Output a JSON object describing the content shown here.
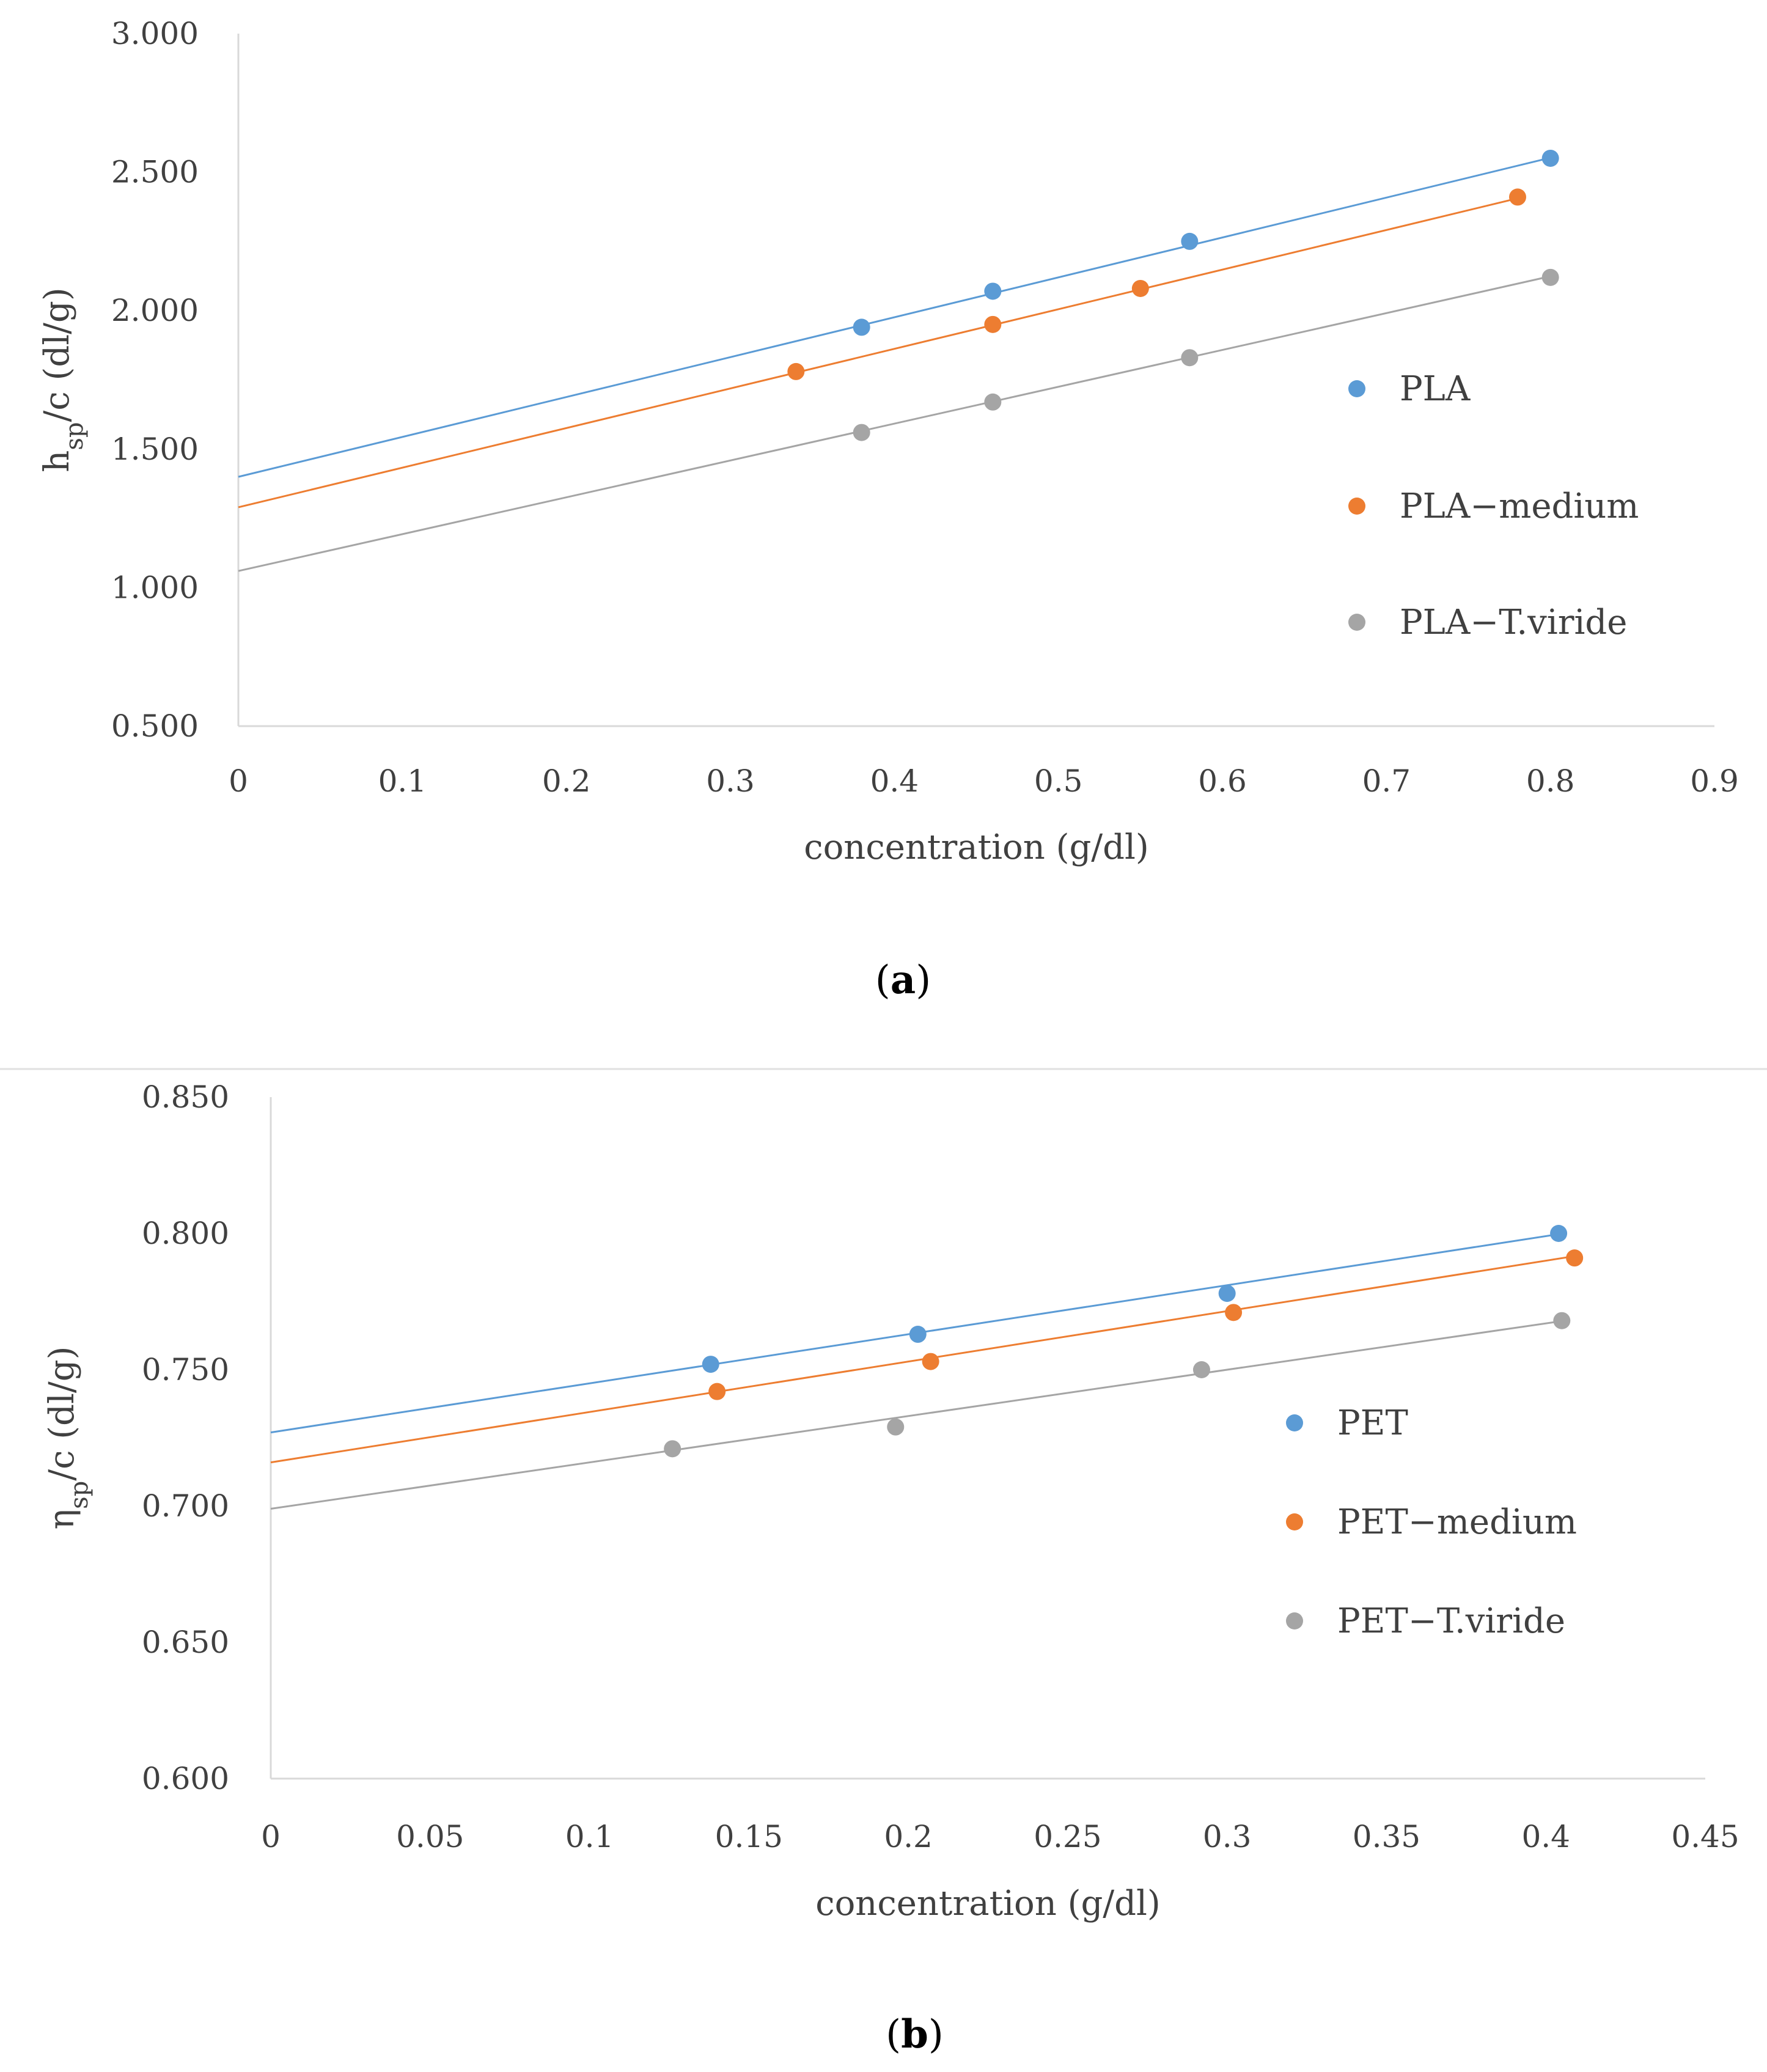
{
  "chart_data": [
    {
      "type": "scatter",
      "panel_label": "a",
      "ylabel": "h_sp/c  (dl/g)",
      "ylabel_main": "h",
      "ylabel_sub": "sp",
      "ylabel_rest": "/c  (dl/g)",
      "xlabel": "concentration (g/dl)",
      "xlim": [
        0,
        0.9
      ],
      "ylim": [
        0.5,
        3.0
      ],
      "x_ticks": [
        "0",
        "0.1",
        "0.2",
        "0.3",
        "0.4",
        "0.5",
        "0.6",
        "0.7",
        "0.8",
        "0.9"
      ],
      "x_tick_values": [
        0,
        0.1,
        0.2,
        0.3,
        0.4,
        0.5,
        0.6,
        0.7,
        0.8,
        0.9
      ],
      "y_ticks": [
        "0.500",
        "1.000",
        "1.500",
        "2.000",
        "2.500",
        "3.000"
      ],
      "y_tick_values": [
        0.5,
        1.0,
        1.5,
        2.0,
        2.5,
        3.0
      ],
      "grid": false,
      "trendlines": true,
      "legend_position": "right",
      "series": [
        {
          "name": "PLA",
          "color": "#5B9BD5",
          "points": [
            [
              0.38,
              1.94
            ],
            [
              0.46,
              2.07
            ],
            [
              0.58,
              2.25
            ],
            [
              0.8,
              2.55
            ]
          ],
          "intercept": 1.4,
          "slope": 1.44
        },
        {
          "name": "PLA−medium",
          "color": "#ED7D31",
          "points": [
            [
              0.34,
              1.78
            ],
            [
              0.46,
              1.95
            ],
            [
              0.55,
              2.08
            ],
            [
              0.78,
              2.41
            ]
          ],
          "intercept": 1.29,
          "slope": 1.43
        },
        {
          "name": "PLA−T.viride",
          "color": "#A5A5A5",
          "points": [
            [
              0.38,
              1.56
            ],
            [
              0.46,
              1.67
            ],
            [
              0.58,
              1.83
            ],
            [
              0.8,
              2.12
            ]
          ],
          "intercept": 1.06,
          "slope": 1.33
        }
      ]
    },
    {
      "type": "scatter",
      "panel_label": "b",
      "ylabel": "η_sp/c (dl/g)",
      "ylabel_main": "η",
      "ylabel_sub": "sp",
      "ylabel_rest": "/c (dl/g)",
      "xlabel": "concentration (g/dl)",
      "xlim": [
        0,
        0.45
      ],
      "ylim": [
        0.6,
        0.85
      ],
      "x_ticks": [
        "0",
        "0.05",
        "0.1",
        "0.15",
        "0.2",
        "0.25",
        "0.3",
        "0.35",
        "0.4",
        "0.45"
      ],
      "x_tick_values": [
        0,
        0.05,
        0.1,
        0.15,
        0.2,
        0.25,
        0.3,
        0.35,
        0.4,
        0.45
      ],
      "y_ticks": [
        "0.600",
        "0.650",
        "0.700",
        "0.750",
        "0.800",
        "0.850"
      ],
      "y_tick_values": [
        0.6,
        0.65,
        0.7,
        0.75,
        0.8,
        0.85
      ],
      "grid": false,
      "trendlines": true,
      "legend_position": "right",
      "series": [
        {
          "name": "PET",
          "color": "#5B9BD5",
          "points": [
            [
              0.138,
              0.752
            ],
            [
              0.203,
              0.763
            ],
            [
              0.3,
              0.778
            ],
            [
              0.404,
              0.8
            ]
          ],
          "intercept": 0.727,
          "slope": 0.18
        },
        {
          "name": "PET−medium",
          "color": "#ED7D31",
          "points": [
            [
              0.14,
              0.742
            ],
            [
              0.207,
              0.753
            ],
            [
              0.302,
              0.771
            ],
            [
              0.409,
              0.791
            ]
          ],
          "intercept": 0.716,
          "slope": 0.185
        },
        {
          "name": "PET−T.viride",
          "color": "#A5A5A5",
          "points": [
            [
              0.126,
              0.721
            ],
            [
              0.196,
              0.729
            ],
            [
              0.292,
              0.75
            ],
            [
              0.405,
              0.768
            ]
          ],
          "intercept": 0.699,
          "slope": 0.17
        }
      ]
    }
  ]
}
